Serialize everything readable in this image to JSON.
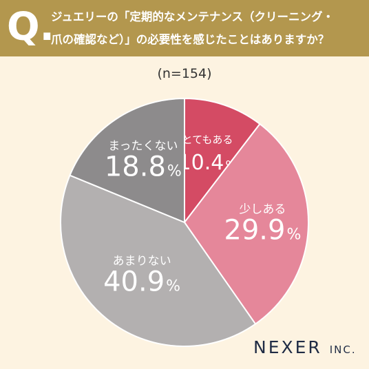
{
  "question": {
    "mark": "Q.",
    "line1": "ジュエリーの「定期的なメンテナンス（クリーニング・",
    "line2": "爪の確認など）」の必要性を感じたことはありますか？"
  },
  "sample_label": "(n=154)",
  "brand": {
    "name": "NEXER",
    "suffix": "INC."
  },
  "colors": {
    "header_bg": "#b3974e",
    "background": "#fdf3e1",
    "label_text": "#ffffff"
  },
  "chart_data": {
    "type": "pie",
    "categories": [
      "とてもある",
      "少しある",
      "あまりない",
      "まったくない"
    ],
    "values": [
      10.4,
      29.9,
      40.9,
      18.8
    ],
    "value_labels": [
      "10.4",
      "29.9",
      "40.9",
      "18.8"
    ],
    "unit": "%",
    "colors": [
      "#d44b64",
      "#e5879a",
      "#b3b0b0",
      "#8d8b8c"
    ],
    "start": "12 o'clock",
    "direction": "clockwise"
  }
}
